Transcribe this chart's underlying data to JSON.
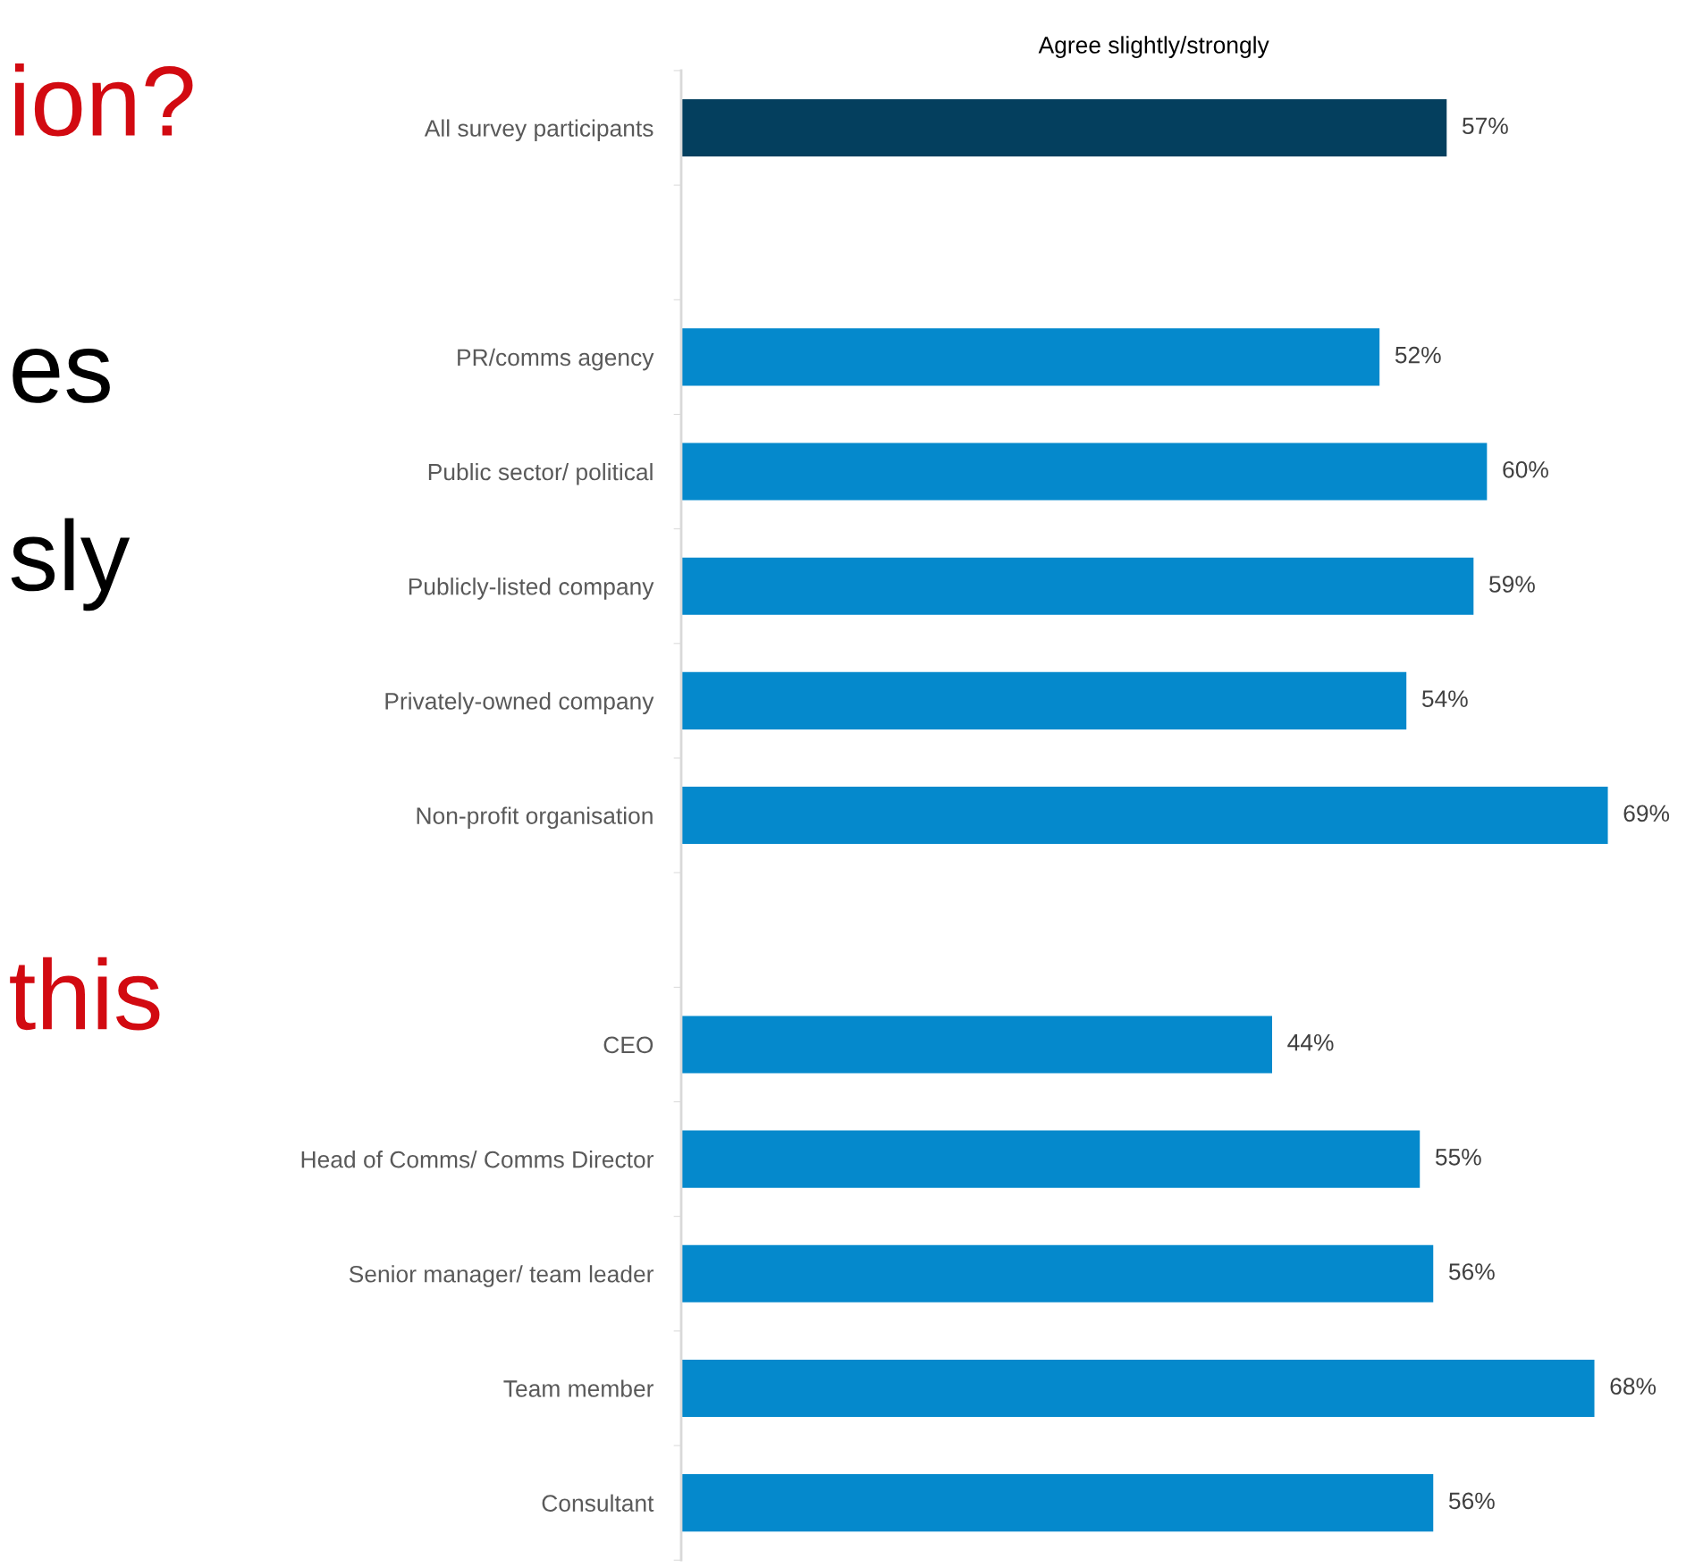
{
  "chart_data": {
    "type": "bar",
    "orientation": "horizontal",
    "title": "Agree slightly/strongly",
    "categories": [
      "All survey participants",
      null,
      "PR/comms agency",
      "Public sector/ political",
      "Publicly-listed company",
      "Privately-owned company",
      "Non-profit organisation",
      null,
      "CEO",
      "Head of Comms/ Comms Director",
      "Senior manager/ team leader",
      "Team member",
      "Consultant"
    ],
    "values": [
      57,
      null,
      52,
      60,
      59,
      54,
      69,
      null,
      44,
      55,
      56,
      68,
      56
    ],
    "value_labels": [
      "57%",
      null,
      "52%",
      "60%",
      "59%",
      "54%",
      "69%",
      null,
      "44%",
      "55%",
      "56%",
      "68%",
      "56%"
    ],
    "colors": [
      "#043f5e",
      "#0589cc",
      "#0589cc",
      "#0589cc",
      "#0589cc",
      "#0589cc",
      "#0589cc",
      "#0589cc",
      "#0589cc",
      "#0589cc",
      "#0589cc",
      "#0589cc",
      "#0589cc"
    ],
    "annotations": [
      "ion?",
      "es",
      "sly",
      "this"
    ],
    "grid": false,
    "legend": false,
    "tick_labels": "y"
  }
}
